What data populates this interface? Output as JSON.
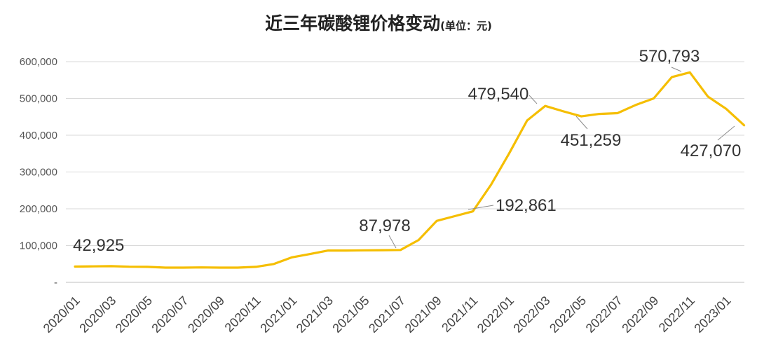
{
  "title": "近三年碳酸锂价格变动",
  "unit": "(单位：元)",
  "chart_data": {
    "type": "line",
    "title": "近三年碳酸锂价格变动",
    "subtitle": "(单位：元)",
    "xlabel": "",
    "ylabel": "",
    "ylim": [
      0,
      600000
    ],
    "y_ticks": [
      "-",
      "100,000",
      "200,000",
      "300,000",
      "400,000",
      "500,000",
      "600,000"
    ],
    "y_tick_values": [
      0,
      100000,
      200000,
      300000,
      400000,
      500000,
      600000
    ],
    "x_tick_labels": [
      "2020/01",
      "2020/03",
      "2020/05",
      "2020/07",
      "2020/09",
      "2020/11",
      "2021/01",
      "2021/03",
      "2021/05",
      "2021/07",
      "2021/09",
      "2021/11",
      "2022/01",
      "2022/03",
      "2022/05",
      "2022/07",
      "2022/09",
      "2022/11",
      "2023/01"
    ],
    "grid": true,
    "line_color": "#F5BE00",
    "series": [
      {
        "x": [
          "2020/01",
          "2020/02",
          "2020/03",
          "2020/04",
          "2020/05",
          "2020/06",
          "2020/07",
          "2020/08",
          "2020/09",
          "2020/10",
          "2020/11",
          "2020/12",
          "2021/01",
          "2021/02",
          "2021/03",
          "2021/04",
          "2021/05",
          "2021/06",
          "2021/07",
          "2021/08",
          "2021/09",
          "2021/10",
          "2021/11",
          "2021/12",
          "2022/01",
          "2022/02",
          "2022/03",
          "2022/04",
          "2022/05",
          "2022/06",
          "2022/07",
          "2022/08",
          "2022/09",
          "2022/10",
          "2022/11",
          "2022/12",
          "2023/01",
          "2023/02"
        ],
        "values": [
          42925,
          43500,
          44000,
          42500,
          42000,
          40000,
          40000,
          40500,
          40000,
          40000,
          42000,
          50000,
          68000,
          77000,
          86500,
          86500,
          87000,
          87500,
          87978,
          115000,
          167000,
          180000,
          192861,
          265000,
          350000,
          440000,
          479540,
          465000,
          451259,
          458000,
          460000,
          482000,
          500000,
          558000,
          570793,
          505000,
          472000,
          427070
        ]
      }
    ],
    "annotations": [
      {
        "label": "42,925",
        "x": "2020/01",
        "y": 42925
      },
      {
        "label": "87,978",
        "x": "2021/07",
        "y": 87978
      },
      {
        "label": "192,861",
        "x": "2021/11",
        "y": 192861
      },
      {
        "label": "479,540",
        "x": "2022/03",
        "y": 479540
      },
      {
        "label": "451,259",
        "x": "2022/05",
        "y": 451259
      },
      {
        "label": "570,793",
        "x": "2022/11",
        "y": 570793
      },
      {
        "label": "427,070",
        "x": "2023/02",
        "y": 427070
      }
    ]
  }
}
